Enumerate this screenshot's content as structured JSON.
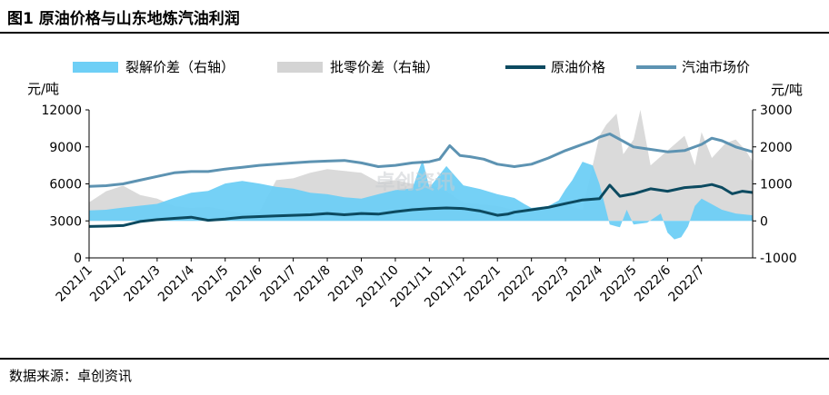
{
  "figure": {
    "title": "图1 原油价格与山东地炼汽油利润",
    "source": "数据来源：卓创资讯",
    "watermark": "卓创资讯"
  },
  "colors": {
    "crack": "#6ecff6",
    "wholesale": "#d4d4d4",
    "crude": "#0c4a60",
    "gasoline": "#5d93b2"
  },
  "chart_data": {
    "type": "line",
    "y_left": {
      "unit": "元/吨",
      "min": 0,
      "max": 12000,
      "ticks": [
        "12000",
        "9000",
        "6000",
        "3000",
        "0"
      ]
    },
    "y_right": {
      "unit": "元/吨",
      "min": -1000,
      "max": 3000,
      "ticks": [
        "3000",
        "2000",
        "1000",
        "0",
        "-1000"
      ]
    },
    "x_ticks": [
      "2021/1",
      "2021/2",
      "2021/3",
      "2021/4",
      "2021/5",
      "2021/6",
      "2021/7",
      "2021/8",
      "2021/9",
      "2021/10",
      "2021/11",
      "2021/12",
      "2022/1",
      "2022/2",
      "2022/3",
      "2022/4",
      "2022/5",
      "2022/6",
      "2022/7"
    ],
    "x_range": [
      0,
      19.5
    ],
    "series": [
      {
        "name": "裂解价差（右轴）",
        "type": "area",
        "axis": "right",
        "points": [
          [
            0,
            280
          ],
          [
            0.5,
            300
          ],
          [
            1,
            360
          ],
          [
            1.5,
            410
          ],
          [
            2,
            460
          ],
          [
            2.5,
            620
          ],
          [
            3,
            760
          ],
          [
            3.5,
            810
          ],
          [
            4,
            1010
          ],
          [
            4.5,
            1080
          ],
          [
            5,
            1010
          ],
          [
            5.5,
            920
          ],
          [
            6,
            870
          ],
          [
            6.5,
            760
          ],
          [
            7,
            720
          ],
          [
            7.5,
            640
          ],
          [
            8,
            600
          ],
          [
            8.5,
            720
          ],
          [
            9,
            830
          ],
          [
            9.5,
            880
          ],
          [
            9.8,
            1650
          ],
          [
            10,
            900
          ],
          [
            10.5,
            1480
          ],
          [
            11,
            960
          ],
          [
            11.5,
            860
          ],
          [
            12,
            720
          ],
          [
            12.5,
            620
          ],
          [
            12.8,
            450
          ],
          [
            13,
            350
          ],
          [
            13.5,
            400
          ],
          [
            13.8,
            550
          ],
          [
            14,
            850
          ],
          [
            14.2,
            1100
          ],
          [
            14.5,
            1600
          ],
          [
            14.8,
            1500
          ],
          [
            15,
            1000
          ],
          [
            15.3,
            -100
          ],
          [
            15.5,
            -150
          ],
          [
            15.6,
            -170
          ],
          [
            15.8,
            300
          ],
          [
            16,
            -100
          ],
          [
            16.4,
            -50
          ],
          [
            16.8,
            200
          ],
          [
            17,
            -320
          ],
          [
            17.2,
            -500
          ],
          [
            17.4,
            -440
          ],
          [
            17.6,
            -150
          ],
          [
            17.8,
            400
          ],
          [
            18,
            600
          ],
          [
            18.3,
            450
          ],
          [
            18.6,
            300
          ],
          [
            19,
            200
          ],
          [
            19.5,
            150
          ]
        ]
      },
      {
        "name": "批零价差（右轴）",
        "type": "area",
        "axis": "right",
        "points": [
          [
            0,
            500
          ],
          [
            0.5,
            800
          ],
          [
            1,
            950
          ],
          [
            1.5,
            700
          ],
          [
            2,
            600
          ],
          [
            2.5,
            400
          ],
          [
            3,
            350
          ],
          [
            3.5,
            380
          ],
          [
            4,
            300
          ],
          [
            4.5,
            200
          ],
          [
            5,
            250
          ],
          [
            5.5,
            1100
          ],
          [
            6,
            1150
          ],
          [
            6.5,
            1300
          ],
          [
            7,
            1400
          ],
          [
            7.5,
            1350
          ],
          [
            8,
            1300
          ],
          [
            8.5,
            1050
          ],
          [
            9,
            1100
          ],
          [
            9.5,
            1000
          ],
          [
            10,
            1000
          ],
          [
            10.5,
            800
          ],
          [
            11,
            500
          ],
          [
            11.5,
            450
          ],
          [
            12,
            400
          ],
          [
            12.5,
            300
          ],
          [
            13,
            350
          ],
          [
            13.5,
            400
          ],
          [
            13.8,
            500
          ],
          [
            14,
            450
          ],
          [
            14.5,
            300
          ],
          [
            15,
            2300
          ],
          [
            15.2,
            2600
          ],
          [
            15.5,
            2900
          ],
          [
            15.7,
            1800
          ],
          [
            16,
            2200
          ],
          [
            16.2,
            3000
          ],
          [
            16.5,
            1500
          ],
          [
            17,
            1900
          ],
          [
            17.5,
            2300
          ],
          [
            17.8,
            1500
          ],
          [
            18,
            2400
          ],
          [
            18.3,
            1700
          ],
          [
            18.7,
            2100
          ],
          [
            19,
            2200
          ],
          [
            19.3,
            1900
          ],
          [
            19.5,
            1600
          ]
        ]
      },
      {
        "name": "原油价格",
        "type": "line",
        "axis": "left",
        "points": [
          [
            0,
            2550
          ],
          [
            0.5,
            2580
          ],
          [
            1,
            2620
          ],
          [
            1.5,
            2950
          ],
          [
            2,
            3100
          ],
          [
            2.5,
            3200
          ],
          [
            3,
            3300
          ],
          [
            3.5,
            3050
          ],
          [
            4,
            3150
          ],
          [
            4.5,
            3300
          ],
          [
            5,
            3350
          ],
          [
            5.5,
            3400
          ],
          [
            6,
            3450
          ],
          [
            6.5,
            3500
          ],
          [
            7,
            3600
          ],
          [
            7.5,
            3500
          ],
          [
            8,
            3600
          ],
          [
            8.5,
            3550
          ],
          [
            9,
            3750
          ],
          [
            9.5,
            3900
          ],
          [
            10,
            4000
          ],
          [
            10.5,
            4050
          ],
          [
            11,
            4000
          ],
          [
            11.5,
            3800
          ],
          [
            12,
            3450
          ],
          [
            12.3,
            3550
          ],
          [
            12.5,
            3700
          ],
          [
            13,
            3900
          ],
          [
            13.5,
            4100
          ],
          [
            14,
            4400
          ],
          [
            14.5,
            4700
          ],
          [
            15,
            4800
          ],
          [
            15.3,
            5900
          ],
          [
            15.6,
            5000
          ],
          [
            16,
            5200
          ],
          [
            16.5,
            5600
          ],
          [
            17,
            5400
          ],
          [
            17.5,
            5700
          ],
          [
            18,
            5800
          ],
          [
            18.3,
            5950
          ],
          [
            18.6,
            5700
          ],
          [
            18.9,
            5200
          ],
          [
            19.2,
            5400
          ],
          [
            19.5,
            5300
          ]
        ]
      },
      {
        "name": "汽油市场价",
        "type": "line",
        "axis": "left",
        "points": [
          [
            0,
            5800
          ],
          [
            0.5,
            5850
          ],
          [
            1,
            6000
          ],
          [
            1.5,
            6300
          ],
          [
            2,
            6600
          ],
          [
            2.5,
            6900
          ],
          [
            3,
            7000
          ],
          [
            3.5,
            7000
          ],
          [
            4,
            7200
          ],
          [
            4.5,
            7350
          ],
          [
            5,
            7500
          ],
          [
            5.5,
            7600
          ],
          [
            6,
            7700
          ],
          [
            6.5,
            7800
          ],
          [
            7,
            7850
          ],
          [
            7.5,
            7900
          ],
          [
            8,
            7700
          ],
          [
            8.5,
            7400
          ],
          [
            9,
            7500
          ],
          [
            9.5,
            7700
          ],
          [
            10,
            7800
          ],
          [
            10.3,
            8000
          ],
          [
            10.6,
            9100
          ],
          [
            10.9,
            8300
          ],
          [
            11.2,
            8200
          ],
          [
            11.6,
            8000
          ],
          [
            12,
            7600
          ],
          [
            12.5,
            7400
          ],
          [
            13,
            7600
          ],
          [
            13.5,
            8100
          ],
          [
            14,
            8700
          ],
          [
            14.5,
            9200
          ],
          [
            14.8,
            9500
          ],
          [
            15,
            9800
          ],
          [
            15.3,
            10050
          ],
          [
            15.6,
            9600
          ],
          [
            16,
            9000
          ],
          [
            16.5,
            8800
          ],
          [
            17,
            8600
          ],
          [
            17.5,
            8700
          ],
          [
            18,
            9200
          ],
          [
            18.3,
            9700
          ],
          [
            18.6,
            9500
          ],
          [
            19,
            9000
          ],
          [
            19.5,
            8600
          ]
        ]
      }
    ]
  }
}
